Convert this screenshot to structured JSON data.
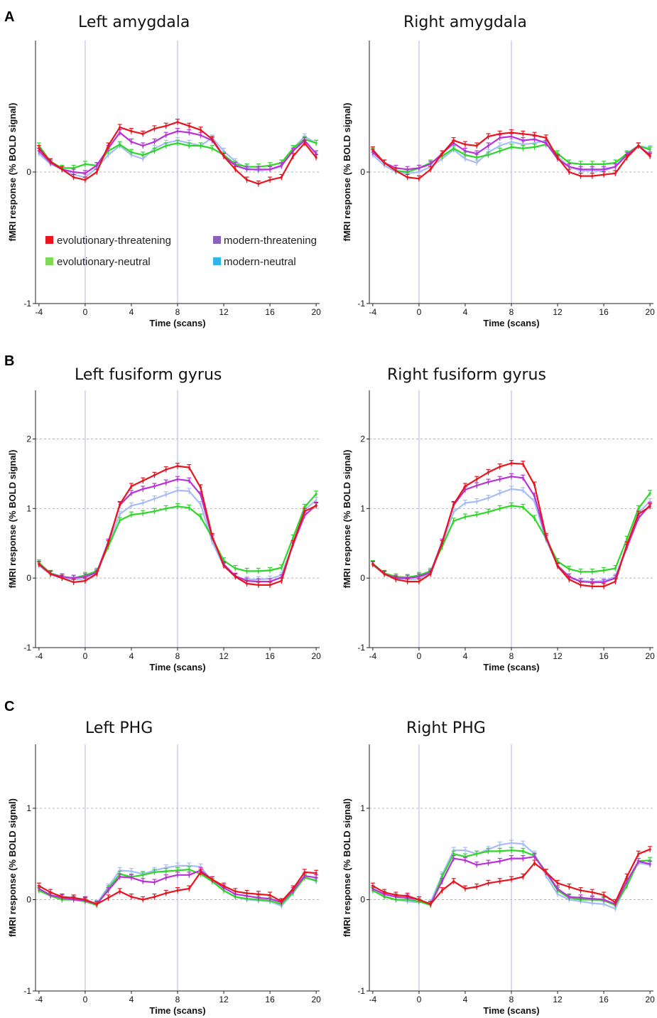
{
  "panel_letters": [
    "A",
    "B",
    "C"
  ],
  "legend": {
    "entries": [
      {
        "label": "evolutionary-threatening",
        "color": "#e8141e"
      },
      {
        "label": "modern-threatening",
        "color": "#8a62b8"
      },
      {
        "label": "evolutionary-neutral",
        "color": "#7ed957"
      },
      {
        "label": "modern-neutral",
        "color": "#2fb5e6"
      }
    ]
  },
  "line_colors": {
    "evolutionary-threatening": "#e8141e",
    "modern-threatening": "#b832d8",
    "evolutionary-neutral": "#2fd62a",
    "modern-neutral": "#a9bdf5"
  },
  "chart_data": [
    {
      "type": "line",
      "panel": "A",
      "title": "Left amygdala",
      "xlabel": "Time (scans)",
      "ylabel": "fMRI response (% BOLD signal)",
      "xlim": [
        -4.3,
        20.3
      ],
      "ylim": [
        -1,
        1
      ],
      "xticks": [
        -4,
        0,
        4,
        8,
        12,
        16,
        20
      ],
      "yticks": [
        -1,
        0
      ],
      "vlines": [
        0,
        8
      ],
      "hgrid": [
        0
      ],
      "x": [
        -4,
        -3,
        -2,
        -1,
        0,
        1,
        2,
        3,
        4,
        5,
        6,
        7,
        8,
        9,
        10,
        11,
        12,
        13,
        14,
        15,
        16,
        17,
        18,
        19,
        20
      ],
      "series": [
        {
          "name": "evolutionary-threatening",
          "values": [
            0.18,
            0.08,
            0.02,
            -0.04,
            -0.06,
            0.0,
            0.2,
            0.34,
            0.31,
            0.29,
            0.33,
            0.35,
            0.38,
            0.35,
            0.32,
            0.25,
            0.12,
            0.02,
            -0.06,
            -0.09,
            -0.06,
            -0.04,
            0.12,
            0.22,
            0.11
          ]
        },
        {
          "name": "modern-threatening",
          "values": [
            0.16,
            0.07,
            0.02,
            0.0,
            -0.01,
            0.05,
            0.18,
            0.3,
            0.23,
            0.2,
            0.23,
            0.28,
            0.31,
            0.3,
            0.28,
            0.24,
            0.12,
            0.05,
            0.02,
            0.02,
            0.02,
            0.05,
            0.16,
            0.24,
            0.14
          ]
        },
        {
          "name": "evolutionary-neutral",
          "values": [
            0.2,
            0.08,
            0.03,
            0.03,
            0.06,
            0.05,
            0.16,
            0.21,
            0.15,
            0.13,
            0.16,
            0.2,
            0.22,
            0.2,
            0.2,
            0.18,
            0.13,
            0.06,
            0.04,
            0.04,
            0.05,
            0.07,
            0.18,
            0.25,
            0.22
          ]
        },
        {
          "name": "modern-neutral",
          "values": [
            0.14,
            0.06,
            0.02,
            -0.02,
            -0.04,
            0.03,
            0.13,
            0.2,
            0.13,
            0.1,
            0.18,
            0.22,
            0.24,
            0.22,
            0.2,
            0.26,
            0.16,
            0.08,
            0.03,
            0.01,
            0.02,
            0.04,
            0.18,
            0.27,
            0.22
          ]
        }
      ]
    },
    {
      "type": "line",
      "panel": "A",
      "title": "Right amygdala",
      "xlabel": "Time (scans)",
      "ylabel": "fMRI response (% BOLD signal)",
      "xlim": [
        -4.3,
        20.3
      ],
      "ylim": [
        -1,
        1
      ],
      "xticks": [
        -4,
        0,
        4,
        8,
        12,
        16,
        20
      ],
      "yticks": [
        -1,
        0
      ],
      "vlines": [
        0,
        8
      ],
      "hgrid": [
        0
      ],
      "x": [
        -4,
        -3,
        -2,
        -1,
        0,
        1,
        2,
        3,
        4,
        5,
        6,
        7,
        8,
        9,
        10,
        11,
        12,
        13,
        14,
        15,
        16,
        17,
        18,
        19,
        20
      ],
      "series": [
        {
          "name": "evolutionary-threatening",
          "values": [
            0.17,
            0.07,
            0.01,
            -0.04,
            -0.05,
            0.02,
            0.14,
            0.24,
            0.21,
            0.2,
            0.27,
            0.29,
            0.3,
            0.29,
            0.28,
            0.26,
            0.11,
            0.0,
            -0.03,
            -0.03,
            -0.02,
            -0.01,
            0.11,
            0.2,
            0.12
          ]
        },
        {
          "name": "modern-threatening",
          "values": [
            0.15,
            0.07,
            0.03,
            0.02,
            0.03,
            0.06,
            0.14,
            0.22,
            0.16,
            0.14,
            0.2,
            0.26,
            0.27,
            0.24,
            0.25,
            0.22,
            0.1,
            0.04,
            0.02,
            0.02,
            0.02,
            0.04,
            0.13,
            0.2,
            0.13
          ]
        },
        {
          "name": "evolutionary-neutral",
          "values": [
            0.16,
            0.07,
            0.01,
            0.0,
            0.03,
            0.07,
            0.12,
            0.18,
            0.13,
            0.11,
            0.13,
            0.16,
            0.19,
            0.18,
            0.19,
            0.21,
            0.14,
            0.07,
            0.06,
            0.06,
            0.06,
            0.07,
            0.14,
            0.2,
            0.17
          ]
        },
        {
          "name": "modern-neutral",
          "values": [
            0.13,
            0.05,
            0.0,
            -0.01,
            0.0,
            0.04,
            0.1,
            0.17,
            0.1,
            0.07,
            0.15,
            0.2,
            0.23,
            0.21,
            0.22,
            0.24,
            0.12,
            0.04,
            0.01,
            0.01,
            0.01,
            0.04,
            0.14,
            0.2,
            0.18
          ]
        }
      ]
    },
    {
      "type": "line",
      "panel": "B",
      "title": "Left fusiform gyrus",
      "xlabel": "Time (scans)",
      "ylabel": "fMRI response (% BOLD signal)",
      "xlim": [
        -4.3,
        20.3
      ],
      "ylim": [
        -1,
        2.7
      ],
      "xticks": [
        -4,
        0,
        4,
        8,
        12,
        16,
        20
      ],
      "yticks": [
        -1,
        0,
        1,
        2
      ],
      "vlines": [
        0,
        8
      ],
      "hgrid": [
        0,
        1,
        2
      ],
      "x": [
        -4,
        -3,
        -2,
        -1,
        0,
        1,
        2,
        3,
        4,
        5,
        6,
        7,
        8,
        9,
        10,
        11,
        12,
        13,
        14,
        15,
        16,
        17,
        18,
        19,
        20
      ],
      "series": [
        {
          "name": "evolutionary-threatening",
          "values": [
            0.2,
            0.06,
            0.0,
            -0.06,
            -0.04,
            0.06,
            0.5,
            1.06,
            1.32,
            1.4,
            1.48,
            1.56,
            1.61,
            1.59,
            1.3,
            0.6,
            0.18,
            0.02,
            -0.08,
            -0.1,
            -0.1,
            -0.04,
            0.5,
            0.96,
            1.04
          ]
        },
        {
          "name": "modern-threatening",
          "values": [
            0.2,
            0.06,
            0.02,
            0.0,
            0.02,
            0.08,
            0.52,
            1.05,
            1.22,
            1.28,
            1.32,
            1.37,
            1.42,
            1.4,
            1.2,
            0.58,
            0.2,
            0.03,
            -0.04,
            -0.05,
            -0.05,
            0.01,
            0.48,
            0.9,
            1.05
          ]
        },
        {
          "name": "evolutionary-neutral",
          "values": [
            0.22,
            0.07,
            0.02,
            0.0,
            0.04,
            0.1,
            0.45,
            0.83,
            0.91,
            0.93,
            0.96,
            1.0,
            1.03,
            1.01,
            0.88,
            0.58,
            0.25,
            0.14,
            0.1,
            0.1,
            0.11,
            0.15,
            0.58,
            1.02,
            1.21
          ]
        },
        {
          "name": "modern-neutral",
          "values": [
            0.18,
            0.05,
            0.0,
            -0.02,
            -0.01,
            0.07,
            0.48,
            0.92,
            1.04,
            1.08,
            1.14,
            1.2,
            1.26,
            1.25,
            1.06,
            0.52,
            0.17,
            0.02,
            -0.02,
            -0.02,
            -0.01,
            0.04,
            0.5,
            0.98,
            1.12
          ]
        }
      ]
    },
    {
      "type": "line",
      "panel": "B",
      "title": "Right fusiform gyrus",
      "xlabel": "Time (scans)",
      "ylabel": "fMRI response (% BOLD signal)",
      "xlim": [
        -4.3,
        20.3
      ],
      "ylim": [
        -1,
        2.7
      ],
      "xticks": [
        -4,
        0,
        4,
        8,
        12,
        16,
        20
      ],
      "yticks": [
        -1,
        0,
        1,
        2
      ],
      "vlines": [
        0,
        8
      ],
      "hgrid": [
        0,
        1,
        2
      ],
      "x": [
        -4,
        -3,
        -2,
        -1,
        0,
        1,
        2,
        3,
        4,
        5,
        6,
        7,
        8,
        9,
        10,
        11,
        12,
        13,
        14,
        15,
        16,
        17,
        18,
        19,
        20
      ],
      "series": [
        {
          "name": "evolutionary-threatening",
          "values": [
            0.2,
            0.06,
            -0.02,
            -0.05,
            -0.05,
            0.06,
            0.5,
            1.06,
            1.32,
            1.42,
            1.52,
            1.6,
            1.65,
            1.64,
            1.34,
            0.6,
            0.17,
            -0.02,
            -0.1,
            -0.12,
            -0.12,
            -0.05,
            0.48,
            0.92,
            1.03
          ]
        },
        {
          "name": "modern-threatening",
          "values": [
            0.2,
            0.06,
            0.0,
            0.0,
            0.02,
            0.08,
            0.52,
            1.05,
            1.27,
            1.33,
            1.38,
            1.42,
            1.46,
            1.44,
            1.18,
            0.58,
            0.18,
            0.02,
            -0.05,
            -0.06,
            -0.06,
            0.0,
            0.44,
            0.86,
            1.05
          ]
        },
        {
          "name": "evolutionary-neutral",
          "values": [
            0.21,
            0.07,
            0.02,
            0.01,
            0.04,
            0.1,
            0.45,
            0.82,
            0.88,
            0.91,
            0.95,
            1.0,
            1.04,
            1.02,
            0.86,
            0.57,
            0.24,
            0.13,
            0.09,
            0.09,
            0.11,
            0.14,
            0.56,
            1.0,
            1.22
          ]
        },
        {
          "name": "modern-neutral",
          "values": [
            0.19,
            0.05,
            0.0,
            -0.02,
            -0.01,
            0.07,
            0.48,
            0.95,
            1.08,
            1.1,
            1.15,
            1.22,
            1.28,
            1.26,
            1.1,
            0.55,
            0.18,
            0.0,
            -0.04,
            -0.05,
            -0.04,
            0.02,
            0.46,
            0.94,
            1.1
          ]
        }
      ]
    },
    {
      "type": "line",
      "panel": "C",
      "title": "Left PHG",
      "xlabel": "Time (scans)",
      "ylabel": "fMRI response (% BOLD signal)",
      "xlim": [
        -4.3,
        20.3
      ],
      "ylim": [
        -1,
        1.7
      ],
      "xticks": [
        -4,
        0,
        4,
        8,
        12,
        16,
        20
      ],
      "yticks": [
        -1,
        0,
        1
      ],
      "vlines": [
        0,
        8
      ],
      "hgrid": [
        0,
        1
      ],
      "x": [
        -4,
        -3,
        -2,
        -1,
        0,
        1,
        2,
        3,
        4,
        5,
        6,
        7,
        8,
        9,
        10,
        11,
        12,
        13,
        14,
        15,
        16,
        17,
        18,
        19,
        20
      ],
      "series": [
        {
          "name": "evolutionary-threatening",
          "values": [
            0.15,
            0.08,
            0.03,
            0.02,
            0.0,
            -0.05,
            0.02,
            0.09,
            0.03,
            0.0,
            0.03,
            0.07,
            0.1,
            0.12,
            0.3,
            0.22,
            0.15,
            0.09,
            0.07,
            0.06,
            0.05,
            -0.02,
            0.12,
            0.3,
            0.29
          ]
        },
        {
          "name": "modern-threatening",
          "values": [
            0.12,
            0.05,
            0.02,
            0.0,
            -0.01,
            -0.05,
            0.1,
            0.25,
            0.24,
            0.2,
            0.19,
            0.24,
            0.27,
            0.27,
            0.32,
            0.22,
            0.13,
            0.06,
            0.04,
            0.02,
            0.01,
            -0.03,
            0.1,
            0.26,
            0.24
          ]
        },
        {
          "name": "evolutionary-neutral",
          "values": [
            0.1,
            0.04,
            0.0,
            0.0,
            -0.02,
            -0.06,
            0.12,
            0.28,
            0.25,
            0.27,
            0.3,
            0.31,
            0.32,
            0.33,
            0.28,
            0.2,
            0.1,
            0.03,
            0.01,
            0.0,
            -0.01,
            -0.05,
            0.08,
            0.24,
            0.21
          ]
        },
        {
          "name": "modern-neutral",
          "values": [
            0.1,
            0.05,
            0.0,
            0.01,
            -0.01,
            -0.04,
            0.14,
            0.32,
            0.31,
            0.28,
            0.32,
            0.35,
            0.37,
            0.37,
            0.36,
            0.2,
            0.1,
            0.03,
            0.0,
            -0.01,
            -0.02,
            -0.07,
            0.07,
            0.25,
            0.2
          ]
        }
      ]
    },
    {
      "type": "line",
      "panel": "C",
      "title": "Right PHG",
      "xlabel": "Time (scans)",
      "ylabel": "fMRI response (% BOLD signal)",
      "xlim": [
        -4.3,
        20.3
      ],
      "ylim": [
        -1,
        1.7
      ],
      "xticks": [
        -4,
        0,
        4,
        8,
        12,
        16,
        20
      ],
      "yticks": [
        -1,
        0,
        1
      ],
      "vlines": [
        0,
        8
      ],
      "hgrid": [
        0,
        1
      ],
      "x": [
        -4,
        -3,
        -2,
        -1,
        0,
        1,
        2,
        3,
        4,
        5,
        6,
        7,
        8,
        9,
        10,
        11,
        12,
        13,
        14,
        15,
        16,
        17,
        18,
        19,
        20
      ],
      "series": [
        {
          "name": "evolutionary-threatening",
          "values": [
            0.15,
            0.08,
            0.05,
            0.04,
            0.0,
            -0.05,
            0.1,
            0.2,
            0.12,
            0.14,
            0.18,
            0.2,
            0.22,
            0.25,
            0.4,
            0.3,
            0.18,
            0.14,
            0.1,
            0.08,
            0.05,
            -0.03,
            0.25,
            0.5,
            0.55
          ]
        },
        {
          "name": "modern-threatening",
          "values": [
            0.12,
            0.06,
            0.03,
            0.02,
            0.0,
            -0.05,
            0.2,
            0.45,
            0.43,
            0.38,
            0.4,
            0.42,
            0.45,
            0.45,
            0.47,
            0.3,
            0.12,
            0.03,
            0.02,
            0.01,
            0.0,
            -0.05,
            0.2,
            0.42,
            0.39
          ]
        },
        {
          "name": "evolutionary-neutral",
          "values": [
            0.1,
            0.03,
            0.0,
            0.0,
            -0.02,
            -0.06,
            0.25,
            0.5,
            0.47,
            0.5,
            0.53,
            0.53,
            0.54,
            0.53,
            0.48,
            0.3,
            0.1,
            0.02,
            0.0,
            0.0,
            -0.01,
            -0.06,
            0.15,
            0.42,
            0.43
          ]
        },
        {
          "name": "modern-neutral",
          "values": [
            0.1,
            0.04,
            0.0,
            -0.02,
            -0.03,
            -0.03,
            0.27,
            0.54,
            0.54,
            0.5,
            0.55,
            0.6,
            0.62,
            0.61,
            0.5,
            0.26,
            0.06,
            0.0,
            -0.02,
            -0.04,
            -0.05,
            -0.1,
            0.18,
            0.4,
            0.38
          ]
        }
      ]
    }
  ]
}
